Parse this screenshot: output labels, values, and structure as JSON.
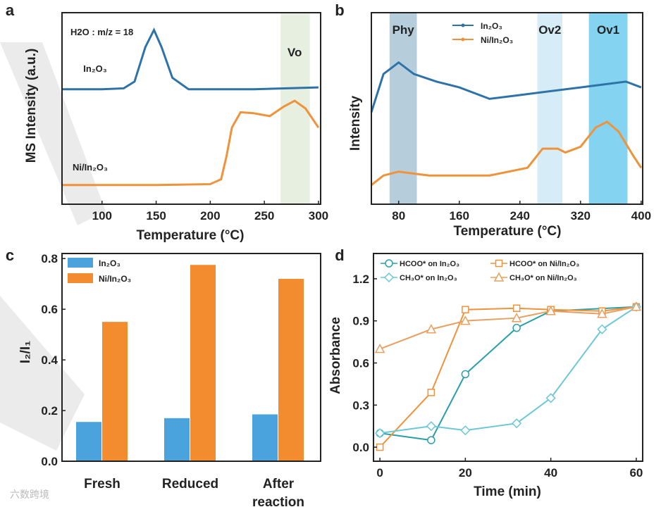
{
  "watermark": "六数跨境",
  "colors": {
    "blue": "#2e73a8",
    "orange": "#f0923a",
    "barBlue": "#4aa3dc",
    "barOrange": "#f28c2e",
    "teal": "#2a9fa8",
    "phy": "#a9c6d6",
    "ov2": "#cfeaf7",
    "ov1": "#6fcdef",
    "vo": "#e6efe0"
  },
  "chart_data": [
    {
      "panel": "a",
      "type": "line",
      "xlabel": "Temperature (°C)",
      "ylabel": "MS Intensity (a.u.)",
      "xlim": [
        63,
        302
      ],
      "ylim": [
        0,
        10
      ],
      "xticks": [
        100,
        150,
        200,
        250,
        300
      ],
      "annotation": "H2O : m/z = 18",
      "band": {
        "label": "Vo",
        "range": [
          265,
          292
        ]
      },
      "series": [
        {
          "name": "In2O3",
          "x": [
            63,
            100,
            120,
            130,
            140,
            148,
            155,
            165,
            180,
            240,
            300
          ],
          "y": [
            6.0,
            6.0,
            6.05,
            6.4,
            8.2,
            9.1,
            8.2,
            6.6,
            6.0,
            6.0,
            6.1
          ]
        },
        {
          "name": "Ni/In2O3",
          "x": [
            63,
            150,
            200,
            210,
            215,
            220,
            228,
            240,
            255,
            268,
            278,
            288,
            300
          ],
          "y": [
            1.0,
            1.0,
            1.05,
            1.3,
            2.5,
            4.0,
            4.8,
            4.75,
            4.6,
            5.1,
            5.4,
            5.0,
            4.0
          ]
        }
      ]
    },
    {
      "panel": "b",
      "type": "line",
      "xlabel": "Temperature (°C)",
      "ylabel": "Intensity",
      "xlim": [
        44,
        402
      ],
      "ylim": [
        0,
        10
      ],
      "xticks": [
        80,
        160,
        240,
        320,
        400
      ],
      "bands": [
        {
          "label": "Phy",
          "range": [
            68,
            104
          ]
        },
        {
          "label": "Ov2",
          "range": [
            263,
            296
          ]
        },
        {
          "label": "Ov1",
          "range": [
            331,
            382
          ]
        }
      ],
      "series": [
        {
          "name": "In2O3",
          "x": [
            44,
            60,
            80,
            100,
            130,
            160,
            200,
            240,
            280,
            320,
            360,
            380,
            400
          ],
          "y": [
            4.8,
            6.8,
            7.4,
            6.8,
            6.4,
            6.1,
            5.5,
            5.7,
            5.9,
            6.1,
            6.3,
            6.4,
            6.1
          ]
        },
        {
          "name": "Ni/In2O3",
          "x": [
            44,
            60,
            80,
            120,
            200,
            250,
            270,
            290,
            300,
            320,
            340,
            355,
            370,
            390,
            400
          ],
          "y": [
            1.0,
            1.5,
            1.7,
            1.5,
            1.5,
            1.9,
            2.9,
            2.9,
            2.7,
            3.0,
            4.0,
            4.3,
            3.8,
            2.5,
            1.9
          ]
        }
      ]
    },
    {
      "panel": "c",
      "type": "bar",
      "ylabel": "I2/I1",
      "ylim": [
        0,
        0.82
      ],
      "yticks": [
        0.0,
        0.2,
        0.4,
        0.6,
        0.8
      ],
      "categories": [
        "Fresh",
        "Reduced",
        "After reaction"
      ],
      "series": [
        {
          "name": "In2O3",
          "values": [
            0.155,
            0.17,
            0.185
          ]
        },
        {
          "name": "Ni/In2O3",
          "values": [
            0.55,
            0.775,
            0.72
          ]
        }
      ]
    },
    {
      "panel": "d",
      "type": "line",
      "xlabel": "Time (min)",
      "ylabel": "Absorbance",
      "xlim": [
        -1.5,
        61.5
      ],
      "ylim": [
        -0.1,
        1.38
      ],
      "xticks": [
        0,
        20,
        40,
        60
      ],
      "yticks": [
        0.0,
        0.3,
        0.6,
        0.9,
        1.2
      ],
      "series": [
        {
          "name": "HCOO* on In2O3",
          "marker": "circle",
          "x": [
            0,
            12,
            20,
            32,
            40,
            60
          ],
          "y": [
            0.1,
            0.05,
            0.52,
            0.85,
            0.97,
            1.0
          ]
        },
        {
          "name": "HCOO* on Ni/In2O3",
          "marker": "square",
          "x": [
            0,
            12,
            20,
            32,
            40,
            52,
            60
          ],
          "y": [
            0.0,
            0.39,
            0.98,
            0.99,
            0.98,
            0.97,
            1.0
          ]
        },
        {
          "name": "CH3O* on In2O3",
          "marker": "diamond",
          "x": [
            0,
            12,
            20,
            32,
            40,
            52,
            60
          ],
          "y": [
            0.1,
            0.15,
            0.12,
            0.17,
            0.35,
            0.84,
            1.0
          ]
        },
        {
          "name": "CH3O* on Ni/In2O3",
          "marker": "triangle",
          "x": [
            0,
            12,
            20,
            32,
            40,
            52,
            60
          ],
          "y": [
            0.7,
            0.84,
            0.9,
            0.92,
            0.97,
            0.95,
            1.0
          ]
        }
      ]
    }
  ]
}
